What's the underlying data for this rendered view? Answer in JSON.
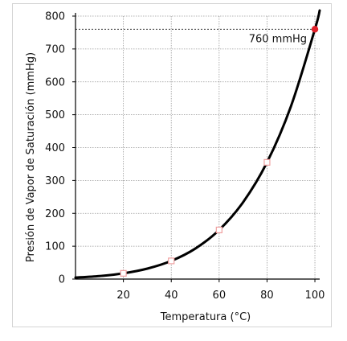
{
  "chart_data": {
    "type": "line",
    "xlabel": "Temperatura (°C)",
    "ylabel": "Presión de Vapor de Saturación (mmHg)",
    "xlim": [
      0,
      102
    ],
    "ylim": [
      0,
      800
    ],
    "x_ticks": [
      20,
      40,
      60,
      80,
      100
    ],
    "y_ticks": [
      0,
      100,
      200,
      300,
      400,
      500,
      600,
      700,
      800
    ],
    "grid": true,
    "series": [
      {
        "x": [
          0,
          10,
          20,
          30,
          40,
          50,
          60,
          70,
          80,
          90,
          100,
          102
        ],
        "values": [
          4.6,
          9.2,
          17.5,
          31.8,
          55.3,
          92.5,
          149.4,
          233.7,
          355.1,
          525.8,
          760,
          817
        ],
        "color": "#000000"
      }
    ],
    "markers": [
      {
        "x": 20,
        "y": 17.5
      },
      {
        "x": 40,
        "y": 55.3
      },
      {
        "x": 60,
        "y": 149.4
      },
      {
        "x": 80,
        "y": 355.1
      }
    ],
    "highlight": {
      "x": 100,
      "y": 760,
      "color": "#e0202a"
    },
    "reference_line": {
      "y": 760,
      "label": "760 mmHg"
    }
  }
}
